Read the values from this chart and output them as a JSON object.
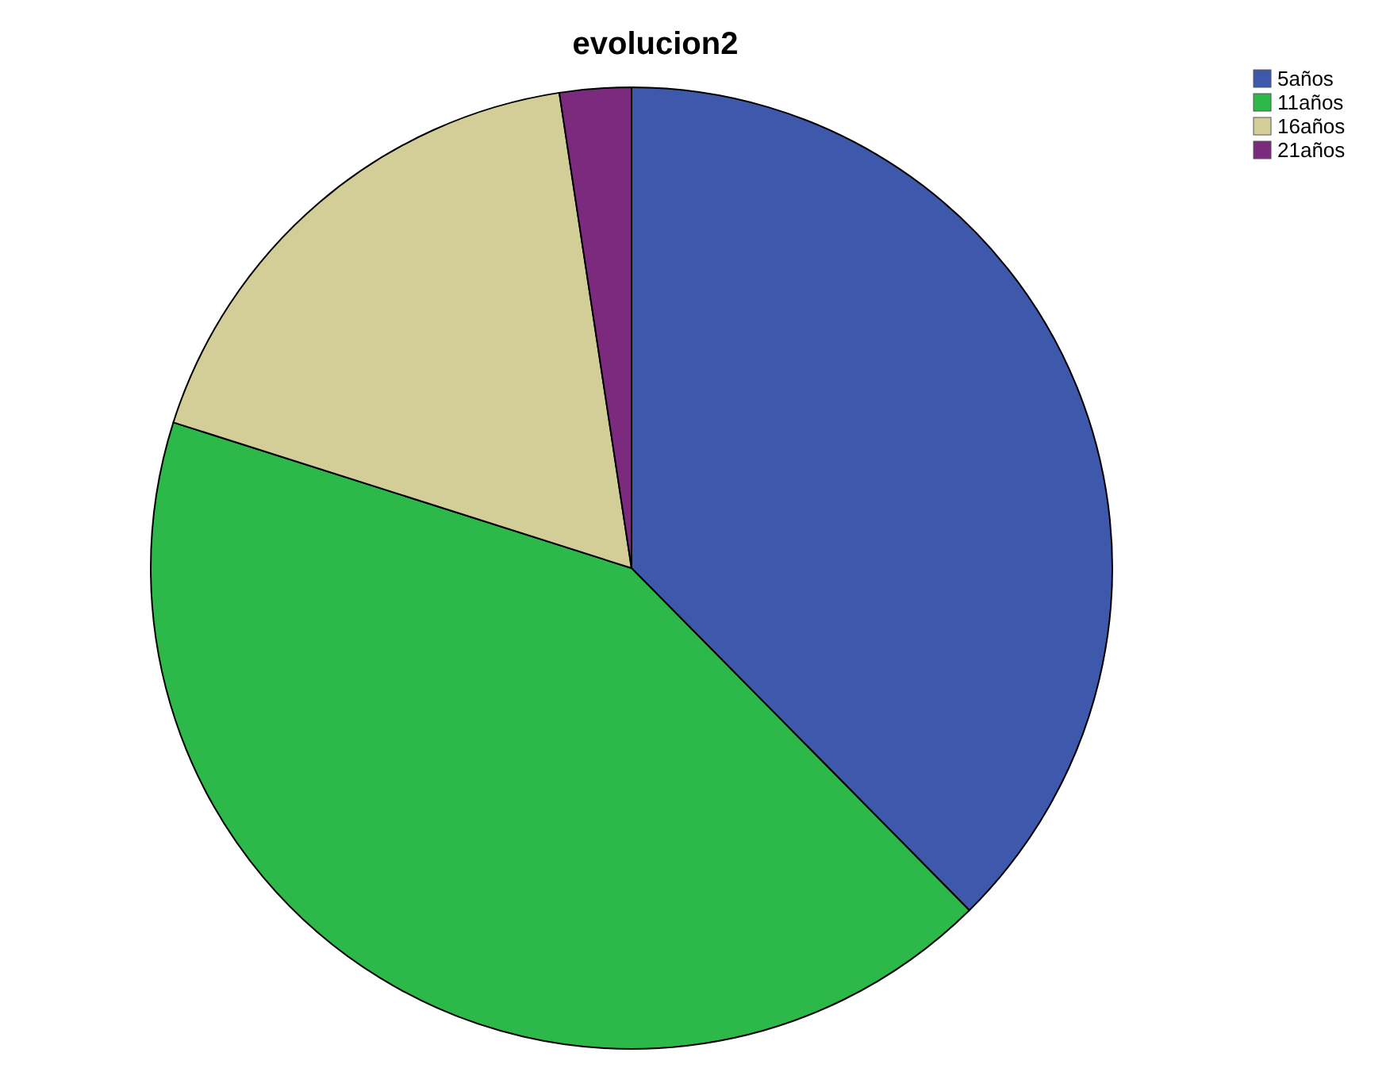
{
  "chart_data": {
    "type": "pie",
    "title": "evolucion2",
    "categories": [
      "5años",
      "11años",
      "16años",
      "21años"
    ],
    "values": [
      37.6,
      42.3,
      17.7,
      2.4
    ],
    "colors": [
      "#3e58ac",
      "#2db84a",
      "#d3ce97",
      "#7b2a7e"
    ],
    "legend": "top right"
  }
}
